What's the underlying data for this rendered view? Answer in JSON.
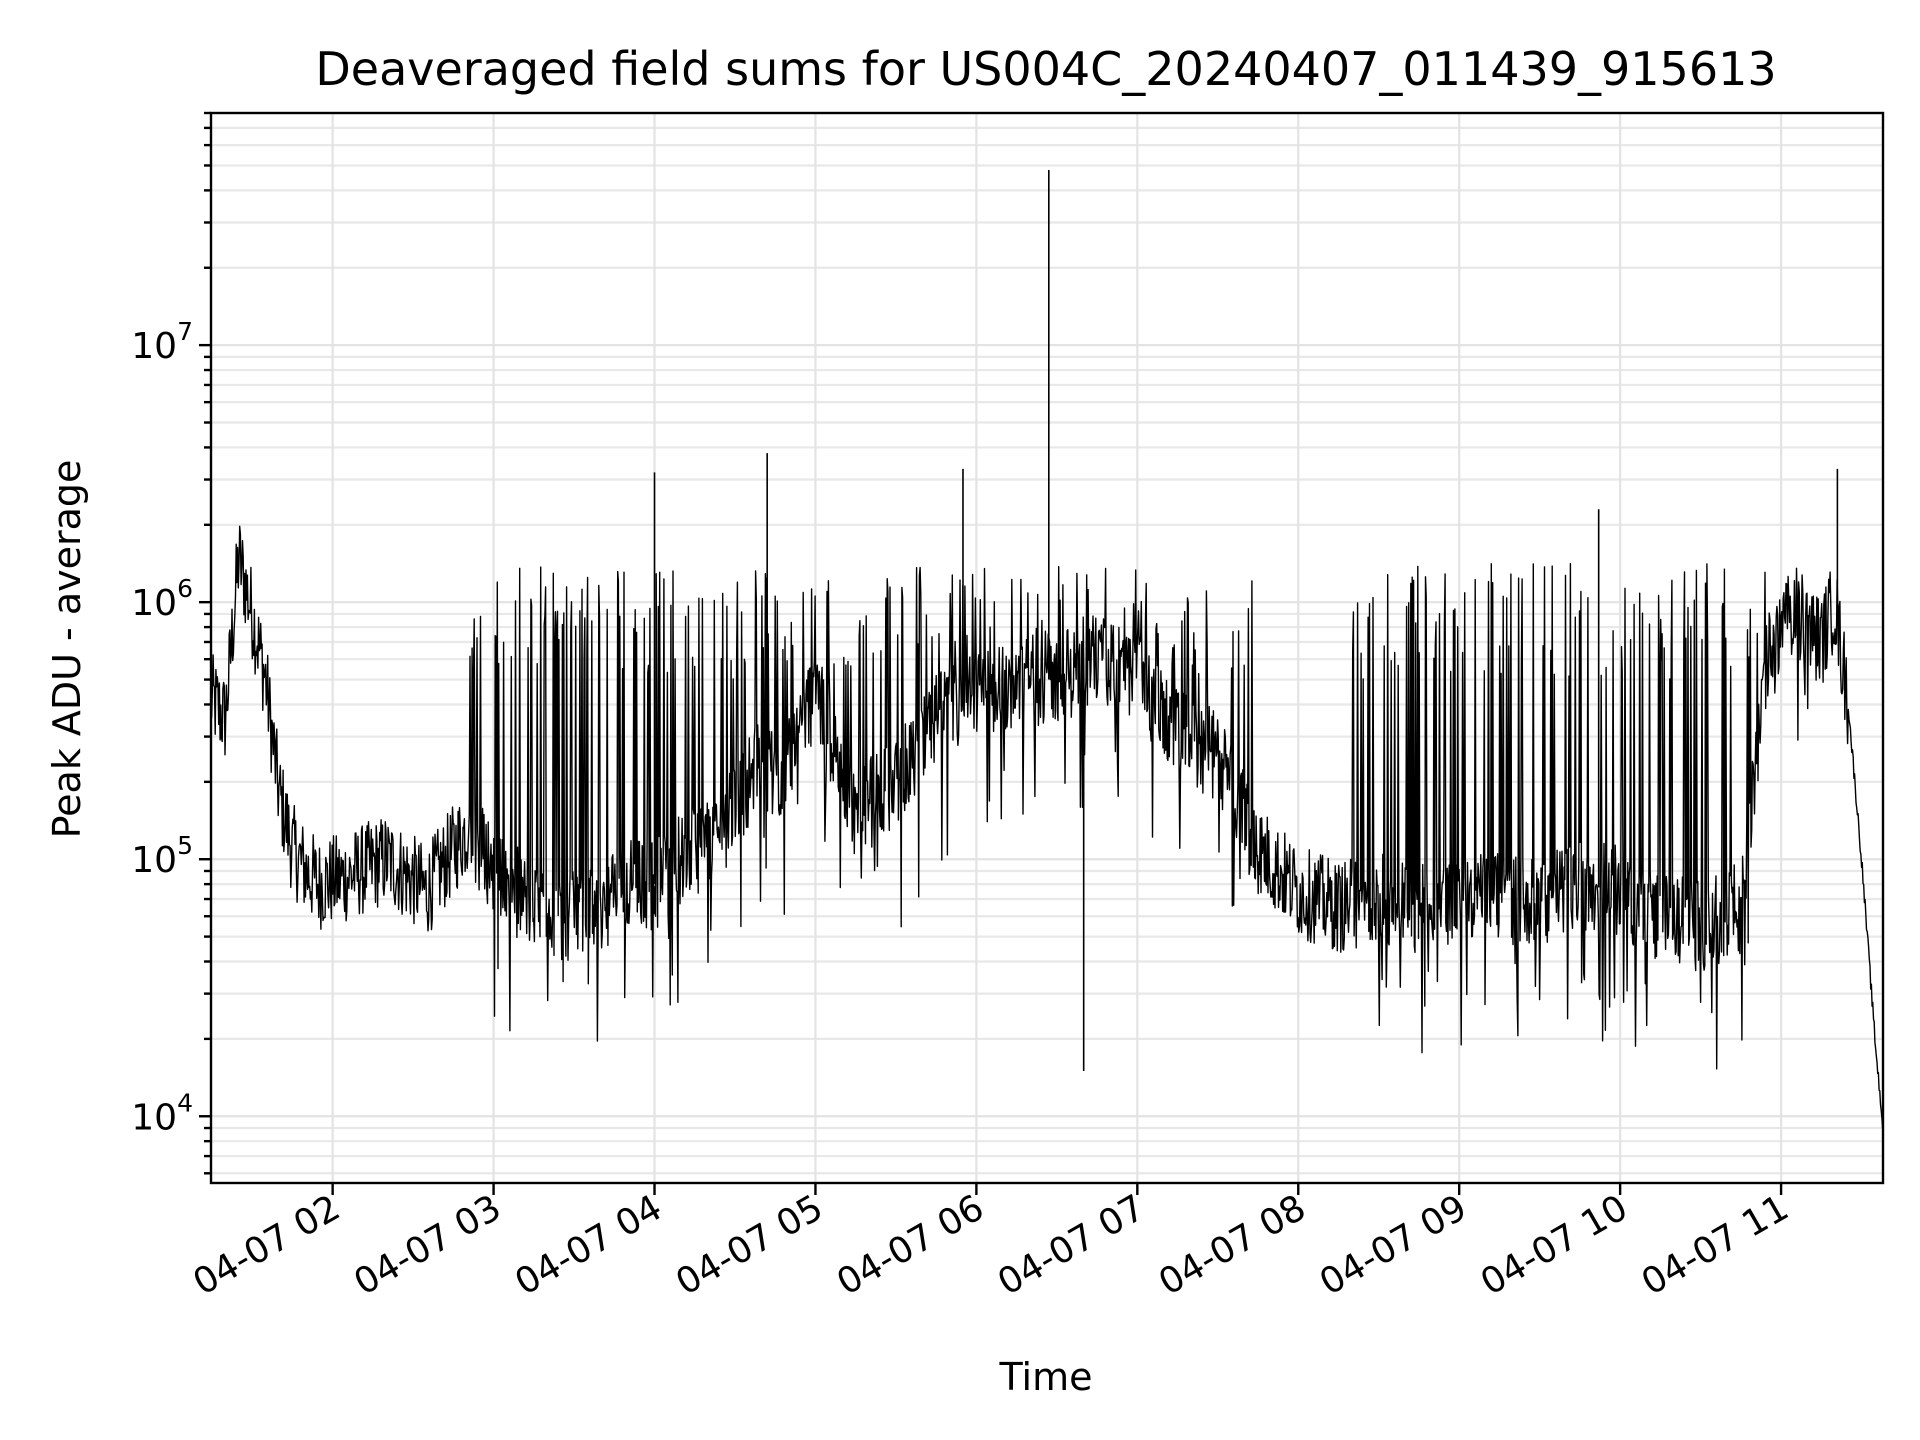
{
  "chart_data": {
    "type": "line",
    "title": "Deaveraged field sums for US004C_20240407_011439_915613",
    "xlabel": "Time",
    "ylabel": "Peak ADU - average",
    "yscale": "log",
    "ylim": [
      5500,
      80000000
    ],
    "xlim": [
      "2024-04-07 01:14:39",
      "2024-04-07 11:38:00"
    ],
    "grid": "on (major and minor)",
    "x_ticks": [
      "04-07 02",
      "04-07 03",
      "04-07 04",
      "04-07 05",
      "04-07 06",
      "04-07 07",
      "04-07 08",
      "04-07 09",
      "04-07 10",
      "04-07 11"
    ],
    "y_ticks": [
      {
        "base": "10",
        "exp": "4",
        "value": 10000
      },
      {
        "base": "10",
        "exp": "5",
        "value": 100000
      },
      {
        "base": "10",
        "exp": "6",
        "value": 1000000
      },
      {
        "base": "10",
        "exp": "7",
        "value": 10000000
      }
    ],
    "series": [
      {
        "color": "#000000",
        "x": [
          "2024-04-07 01:15",
          "2024-04-07 01:20",
          "2024-04-07 01:25",
          "2024-04-07 01:30",
          "2024-04-07 01:35",
          "2024-04-07 01:40",
          "2024-04-07 01:45",
          "2024-04-07 01:50",
          "2024-04-07 01:55",
          "2024-04-07 02:05",
          "2024-04-07 02:20",
          "2024-04-07 02:35",
          "2024-04-07 02:50",
          "2024-04-07 03:05",
          "2024-04-07 03:20",
          "2024-04-07 03:35",
          "2024-04-07 03:50",
          "2024-04-07 04:00",
          "2024-04-07 04:10",
          "2024-04-07 04:25",
          "2024-04-07 04:40",
          "2024-04-07 04:45",
          "2024-04-07 05:00",
          "2024-04-07 05:15",
          "2024-04-07 05:30",
          "2024-04-07 05:45",
          "2024-04-07 05:55",
          "2024-04-07 06:15",
          "2024-04-07 06:30",
          "2024-04-07 06:45",
          "2024-04-07 07:00",
          "2024-04-07 07:15",
          "2024-04-07 07:30",
          "2024-04-07 07:45",
          "2024-04-07 08:00",
          "2024-04-07 08:15",
          "2024-04-07 08:30",
          "2024-04-07 08:45",
          "2024-04-07 09:00",
          "2024-04-07 09:15",
          "2024-04-07 09:30",
          "2024-04-07 09:45",
          "2024-04-07 10:00",
          "2024-04-07 10:15",
          "2024-04-07 10:30",
          "2024-04-07 10:45",
          "2024-04-07 10:55",
          "2024-04-07 11:05",
          "2024-04-07 11:15",
          "2024-04-07 11:20",
          "2024-04-07 11:25",
          "2024-04-07 11:30",
          "2024-04-07 11:35",
          "2024-04-07 11:38"
        ],
        "y": [
          420000,
          350000,
          1500000,
          900000,
          500000,
          180000,
          110000,
          90000,
          80000,
          85000,
          100000,
          75000,
          130000,
          80000,
          60000,
          60000,
          80000,
          80000,
          100000,
          130000,
          250000,
          200000,
          450000,
          150000,
          200000,
          350000,
          400000,
          500000,
          500000,
          600000,
          500000,
          300000,
          250000,
          110000,
          75000,
          65000,
          70000,
          65000,
          70000,
          70000,
          70000,
          80000,
          75000,
          60000,
          55000,
          65000,
          600000,
          900000,
          700000,
          1000000,
          400000,
          100000,
          20000,
          9000
        ],
        "spikes": [
          {
            "x": "2024-04-07 04:00",
            "y": 3200000
          },
          {
            "x": "2024-04-07 04:42",
            "y": 3800000
          },
          {
            "x": "2024-04-07 05:55",
            "y": 3300000
          },
          {
            "x": "2024-04-07 06:27",
            "y": 48000000
          },
          {
            "x": "2024-04-07 09:52",
            "y": 2300000
          },
          {
            "x": "2024-04-07 11:21",
            "y": 3300000
          },
          {
            "x": "2024-04-07 06:40",
            "y": 15000
          }
        ]
      }
    ]
  }
}
